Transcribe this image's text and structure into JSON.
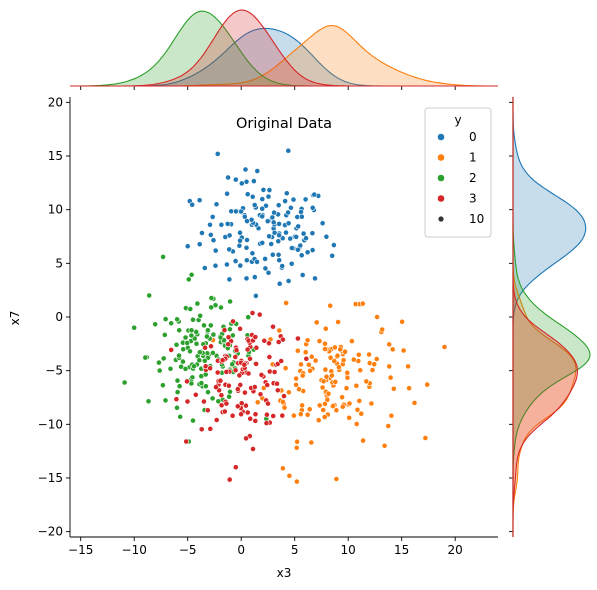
{
  "chart_data": {
    "type": "scatter",
    "title": "Original Data",
    "xlabel": "x3",
    "ylabel": "x7",
    "xlim": [
      -16,
      24
    ],
    "ylim": [
      -20.5,
      20.5
    ],
    "xticks": [
      -15,
      -10,
      -5,
      0,
      5,
      10,
      15,
      20
    ],
    "yticks": [
      -20,
      -15,
      -10,
      -5,
      0,
      5,
      10,
      15,
      20
    ],
    "grid": false,
    "legend": {
      "placement": "top-right",
      "title": "y",
      "hue_entries": [
        {
          "label": "0",
          "color": "#1f77b4"
        },
        {
          "label": "1",
          "color": "#ff7f0e"
        },
        {
          "label": "2",
          "color": "#2ca02c"
        },
        {
          "label": "3",
          "color": "#d62728"
        }
      ],
      "size_entries": [
        {
          "label": "10"
        }
      ]
    },
    "series": [
      {
        "name": "0",
        "color": "#1f77b4",
        "center": [
          2.3,
          8.0
        ],
        "spread": [
          3.0,
          2.3
        ],
        "n": 150,
        "points": [
          [
            -2.2,
            15.2
          ],
          [
            4.4,
            15.5
          ],
          [
            -0.5,
            12.8
          ],
          [
            0.5,
            12.6
          ],
          [
            1.5,
            13.6
          ],
          [
            -4.8,
            10.8
          ],
          [
            8.5,
            5.7
          ],
          [
            -5.0,
            6.6
          ],
          [
            3.6,
            3.1
          ],
          [
            6.9,
            3.6
          ],
          [
            -1.1,
            3.5
          ],
          [
            0.5,
            3.6
          ],
          [
            3.8,
            4.6
          ],
          [
            2.0,
            9.5
          ],
          [
            2.8,
            6.8
          ],
          [
            1.0,
            8.6
          ],
          [
            4.1,
            10.8
          ]
        ]
      },
      {
        "name": "1",
        "color": "#ff7f0e",
        "center": [
          8.5,
          -5.5
        ],
        "spread": [
          3.2,
          2.9
        ],
        "n": 150,
        "points": [
          [
            19.0,
            -2.8
          ],
          [
            16.2,
            -8.0
          ],
          [
            15.6,
            -4.6
          ],
          [
            13.4,
            -12.0
          ],
          [
            10.7,
            1.2
          ],
          [
            4.2,
            1.3
          ],
          [
            3.9,
            -14.1
          ],
          [
            8.9,
            -15.1
          ],
          [
            4.5,
            -14.8
          ],
          [
            12.7,
            0.0
          ],
          [
            13.1,
            -1.4
          ],
          [
            7.5,
            -5.9
          ],
          [
            9.5,
            -4.4
          ],
          [
            6.4,
            -8.6
          ]
        ]
      },
      {
        "name": "2",
        "color": "#2ca02c",
        "center": [
          -3.5,
          -3.6
        ],
        "spread": [
          2.6,
          2.3
        ],
        "n": 150,
        "points": [
          [
            -10.9,
            -6.1
          ],
          [
            -7.3,
            5.6
          ],
          [
            -4.9,
            3.5
          ],
          [
            -8.6,
            2.0
          ],
          [
            -2.6,
            1.7
          ],
          [
            -2.4,
            1.1
          ],
          [
            -4.9,
            -11.6
          ],
          [
            -5.7,
            -9.3
          ],
          [
            -10.0,
            -1.0
          ],
          [
            -3.2,
            -3.7
          ],
          [
            -4.1,
            -1.6
          ],
          [
            -1.8,
            -5.2
          ],
          [
            -6.1,
            -4.0
          ]
        ]
      },
      {
        "name": "3",
        "color": "#d62728",
        "center": [
          0.3,
          -5.5
        ],
        "spread": [
          2.4,
          2.4
        ],
        "n": 130,
        "points": [
          [
            -0.5,
            -14.0
          ],
          [
            1.1,
            -12.3
          ],
          [
            0.8,
            -11.1
          ],
          [
            5.3,
            -2.0
          ],
          [
            -0.1,
            -1.1
          ],
          [
            2.4,
            -9.1
          ],
          [
            -2.2,
            -6.4
          ],
          [
            0.5,
            -4.3
          ],
          [
            1.8,
            -7.2
          ],
          [
            -0.8,
            -9.2
          ]
        ]
      }
    ],
    "marginal_x_kde": {
      "note_values": "peak x locations",
      "peaks": {
        "0": 2.5,
        "1": 8.3,
        "2": -2.8,
        "3": 0.4
      }
    },
    "marginal_y_kde": {
      "peaks": {
        "0": 7.9,
        "1": -5.6,
        "2": -3.4,
        "3": -6.5
      }
    }
  }
}
